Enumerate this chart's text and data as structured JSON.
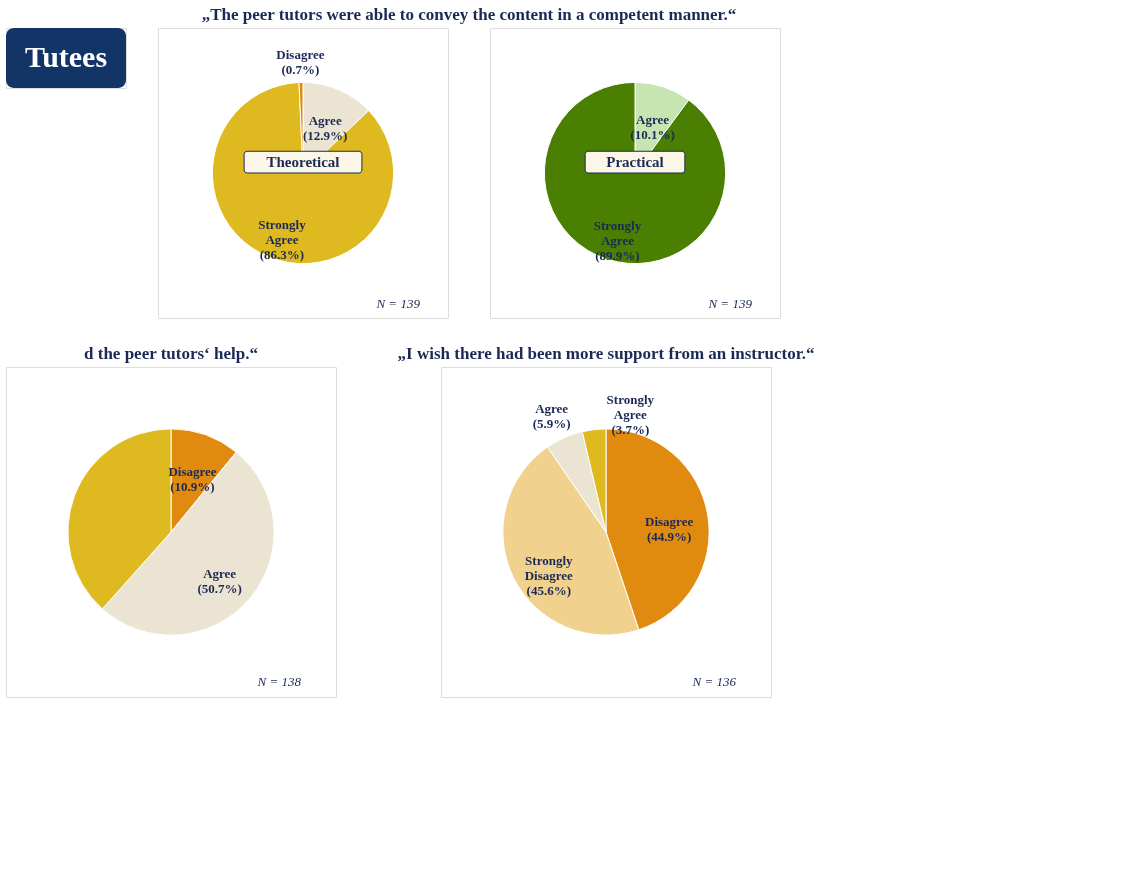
{
  "chart_data": [
    {
      "type": "other",
      "title": "Tutees"
    },
    {
      "type": "pie",
      "title": "„The peer tutors were able to convey the content in a competent manner.“",
      "subtitle": "Theoretical",
      "categories": [
        "Agree",
        "Strongly Agree",
        "Disagree"
      ],
      "values": [
        12.9,
        86.3,
        0.7
      ],
      "colors": [
        "#ebe4d2",
        "#dfb920",
        "#e08a10"
      ],
      "value_labels": [
        "(12.9%)",
        "(86.3%)",
        "(0.7%)"
      ],
      "annotations": [
        "N = 139"
      ]
    },
    {
      "type": "pie",
      "subtitle": "Practical",
      "categories": [
        "Agree",
        "Strongly Agree"
      ],
      "values": [
        10.1,
        89.9
      ],
      "colors": [
        "#c6e5b1",
        "#4a7f02"
      ],
      "value_labels": [
        "(10.1%)",
        "(89.9%)"
      ],
      "annotations": [
        "N = 139"
      ]
    },
    {
      "type": "pie",
      "title": "d the peer tutors‘ help.“",
      "categories": [
        "Disagree",
        "Agree",
        null
      ],
      "values": [
        10.9,
        50.7,
        38.4
      ],
      "colors": [
        "#e08a10",
        "#ebe4d2",
        "#dfb920"
      ],
      "value_labels": [
        "(10.9%)",
        "(50.7%)",
        null
      ],
      "annotations": [
        "N = 138"
      ]
    },
    {
      "type": "pie",
      "title": "„I wish there had been more support from an instructor.“",
      "categories": [
        "Disagree",
        "Strongly Disagree",
        "Agree",
        "Strongly Agree"
      ],
      "values": [
        44.9,
        45.6,
        5.9,
        3.7
      ],
      "colors": [
        "#e08a10",
        "#f0d28e",
        "#ebe4d2",
        "#dfb920"
      ],
      "value_labels": [
        "(44.9%)",
        "(45.6%)",
        "(5.9%)",
        "(3.7%)"
      ],
      "annotations": [
        "N = 136"
      ]
    }
  ]
}
